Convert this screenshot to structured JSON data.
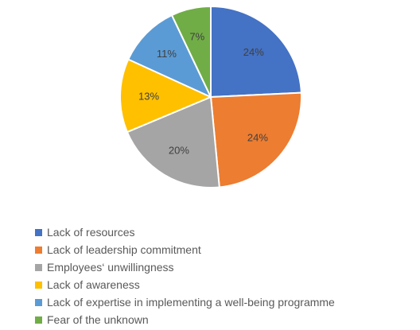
{
  "chart_data": {
    "type": "pie",
    "categories": [
      "Lack of resources",
      "Lack of leadership commitment",
      "Employees‘ unwillingness",
      "Lack of awareness",
      "Lack of expertise in implementing a well-being programme",
      "Fear of the unknown"
    ],
    "values": [
      24,
      24,
      20,
      13,
      11,
      7
    ],
    "data_labels": [
      "24%",
      "24%",
      "20%",
      "13%",
      "11%",
      "7%"
    ],
    "colors": [
      "#4472C4",
      "#ED7D31",
      "#A5A5A5",
      "#FFC000",
      "#5B9BD5",
      "#70AD47"
    ],
    "start_angle_deg": 0,
    "direction": "clockwise",
    "legend_position": "bottom-left"
  }
}
